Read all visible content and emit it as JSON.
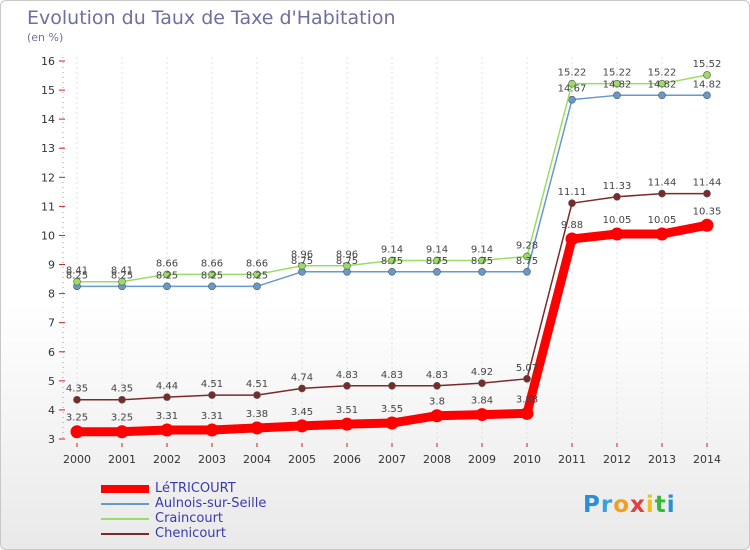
{
  "title": "Evolution du Taux de Taxe d'Habitation",
  "subtitle": "(en %)",
  "logo": {
    "text": "Proxiti",
    "colors": [
      "#2a8fd6",
      "#3aa0e0",
      "#f0a020",
      "#e04040",
      "#f0c020",
      "#38b838",
      "#2a8fd6"
    ]
  },
  "chart_data": {
    "type": "line",
    "x": [
      "2000",
      "2001",
      "2002",
      "2003",
      "2004",
      "2005",
      "2006",
      "2007",
      "2008",
      "2009",
      "2010",
      "2011",
      "2012",
      "2013",
      "2014"
    ],
    "ylim": [
      3,
      16
    ],
    "yticks": [
      "3",
      "4",
      "5",
      "6",
      "7",
      "8",
      "9",
      "10",
      "11",
      "12",
      "13",
      "14",
      "15",
      "16"
    ],
    "legend_position": "bottom-left",
    "series": [
      {
        "name": "LéTRICOURT",
        "color": "#ff0000",
        "width": 9,
        "values": [
          3.25,
          3.25,
          3.31,
          3.31,
          3.38,
          3.45,
          3.51,
          3.55,
          3.8,
          3.84,
          3.88,
          9.88,
          10.05,
          10.05,
          10.35
        ],
        "labels": [
          "3.25",
          "3.25",
          "3.31",
          "3.31",
          "3.38",
          "3.45",
          "3.51",
          "3.55",
          "3.8",
          "3.84",
          "3.88",
          "9.88",
          "10.05",
          "10.05",
          "10.35"
        ]
      },
      {
        "name": "Aulnois-sur-Seille",
        "color": "#6699cc",
        "width": 1.5,
        "values": [
          8.25,
          8.25,
          8.25,
          8.25,
          8.25,
          8.75,
          8.75,
          8.75,
          8.75,
          8.75,
          8.75,
          14.67,
          14.82,
          14.82,
          14.82
        ],
        "labels": [
          "8.25",
          "8.25",
          "8.25",
          "8.25",
          "8.25",
          "8.75",
          "8.75",
          "8.75",
          "8.75",
          "8.75",
          "8.75",
          "14.67",
          "14.82",
          "14.82",
          "14.82"
        ]
      },
      {
        "name": "Craincourt",
        "color": "#99dd66",
        "width": 1.5,
        "values": [
          8.41,
          8.41,
          8.66,
          8.66,
          8.66,
          8.96,
          8.96,
          9.14,
          9.14,
          9.14,
          9.28,
          15.22,
          15.22,
          15.22,
          15.52
        ],
        "labels": [
          "8.41",
          "8.41",
          "8.66",
          "8.66",
          "8.66",
          "8.96",
          "8.96",
          "9.14",
          "9.14",
          "9.14",
          "9.28",
          "15.22",
          "15.22",
          "15.22",
          "15.52"
        ]
      },
      {
        "name": "Chenicourt",
        "color": "#7a2a2a",
        "width": 1.5,
        "values": [
          4.35,
          4.35,
          4.44,
          4.51,
          4.51,
          4.74,
          4.83,
          4.83,
          4.83,
          4.92,
          5.07,
          11.11,
          11.33,
          11.44,
          11.44
        ],
        "labels": [
          "4.35",
          "4.35",
          "4.44",
          "4.51",
          "4.51",
          "4.74",
          "4.83",
          "4.83",
          "4.83",
          "4.92",
          "5.07",
          "11.11",
          "11.33",
          "11.44",
          "11.44"
        ]
      }
    ]
  }
}
